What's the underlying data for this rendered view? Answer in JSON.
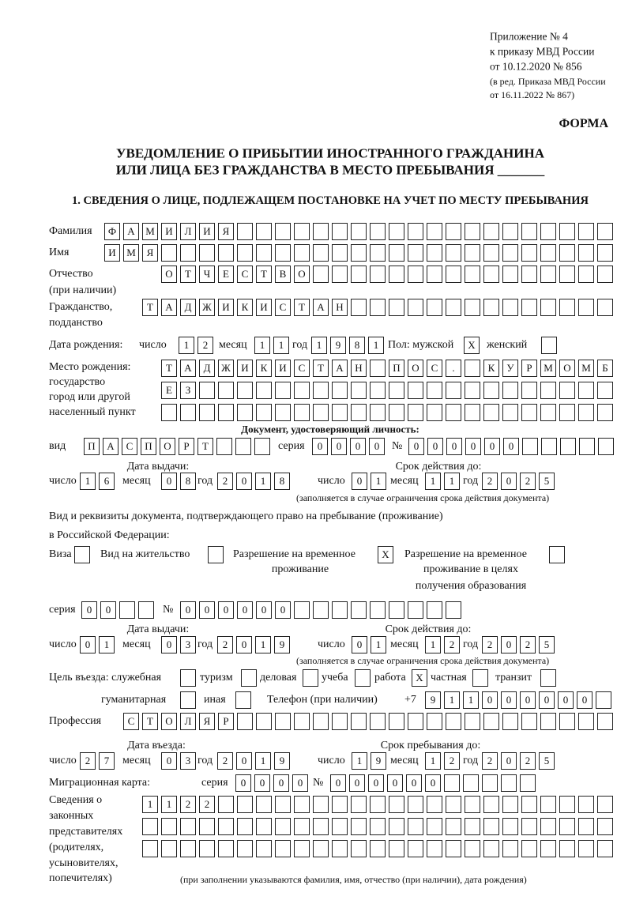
{
  "header": {
    "appendix": "Приложение № 4",
    "order": "к приказу МВД России",
    "order_date": "от 10.12.2020 № 856",
    "edition_1": "(в ред. Приказа МВД России",
    "edition_2": "от 16.11.2022 № 867)",
    "form_label": "ФОРМА"
  },
  "title": {
    "line1": "УВЕДОМЛЕНИЕ О ПРИБЫТИИ ИНОСТРАННОГО ГРАЖДАНИНА",
    "line2": "ИЛИ ЛИЦА БЕЗ ГРАЖДАНСТВА В МЕСТО ПРЕБЫВАНИЯ _______"
  },
  "section1": {
    "heading": "1. СВЕДЕНИЯ О ЛИЦЕ, ПОДЛЕЖАЩЕМ ПОСТАНОВКЕ НА УЧЕТ ПО МЕСТУ ПРЕБЫВАНИЯ",
    "labels": {
      "surname": "Фамилия",
      "name": "Имя",
      "patronymic_1": "Отчество",
      "patronymic_2": "(при наличии)",
      "citizenship_1": "Гражданство,",
      "citizenship_2": "подданство",
      "birth_date": "Дата рождения:",
      "day": "число",
      "month": "месяц",
      "year": "год",
      "sex_male": "Пол: мужской",
      "sex_female": "женский",
      "birthplace_1": "Место рождения:",
      "birthplace_2": "государство",
      "birthplace_3": "город или другой",
      "birthplace_4": "населенный пункт",
      "id_doc": "Документ, удостоверяющий личность:",
      "kind": "вид",
      "series": "серия",
      "number": "№",
      "issue_date": "Дата выдачи:",
      "valid_until": "Срок действия до:",
      "validity_note": "(заполняется в случае ограничения срока действия документа)",
      "stay_doc_1": "Вид и реквизиты документа, подтверждающего право на пребывание (проживание)",
      "stay_doc_2": "в Российской Федерации:",
      "visa": "Виза",
      "residence_permit": "Вид на жительство",
      "temp_residence_1": "Разрешение на временное",
      "temp_residence_2": "проживание",
      "temp_edu_1": "Разрешение на временное",
      "temp_edu_2": "проживание в целях",
      "temp_edu_3": "получения образования",
      "purpose": "Цель въезда: служебная",
      "tourism": "туризм",
      "business": "деловая",
      "study": "учеба",
      "work": "работа",
      "private": "частная",
      "transit": "транзит",
      "humanitarian": "гуманитарная",
      "other": "иная",
      "phone": "Телефон (при наличии)",
      "phone_prefix": "+7",
      "profession": "Профессия",
      "entry_date": "Дата въезда:",
      "stay_until": "Срок пребывания до:",
      "migration_card": "Миграционная карта:",
      "reps_1": "Сведения о",
      "reps_2": "законных",
      "reps_3": "представителях",
      "reps_4": "(родителях,",
      "reps_5": "усыновителях,",
      "reps_6": "попечителях)",
      "reps_note": "(при заполнении указываются фамилия, имя, отчество (при наличии), дата рождения)"
    },
    "values": {
      "surname": "ФАМИЛИЯ",
      "name": "ИМЯ",
      "patronymic": "ОТЧЕСТВО",
      "citizenship": "ТАДЖИКИСТАН",
      "birth_day": "12",
      "birth_month": "11",
      "birth_year": "1981",
      "sex_male": "X",
      "sex_female": "",
      "birthplace_1": "ТАДЖИКИСТАН ПОС. КУРМОМБ",
      "birthplace_2": "ЕЗ",
      "birthplace_3": "",
      "id_kind": "ПАСПОРТ",
      "id_series": "0000",
      "id_number": "000000",
      "id_issue_day": "16",
      "id_issue_month": "08",
      "id_issue_year": "2018",
      "id_valid_day": "01",
      "id_valid_month": "11",
      "id_valid_year": "2025",
      "visa": "",
      "residence_permit": "",
      "temp_residence": "X",
      "temp_edu": "",
      "stay_series": "00",
      "stay_number": "000000",
      "stay_issue_day": "01",
      "stay_issue_month": "03",
      "stay_issue_year": "2019",
      "stay_valid_day": "01",
      "stay_valid_month": "12",
      "stay_valid_year": "2025",
      "purpose_official": "",
      "purpose_tourism": "",
      "purpose_business": "",
      "purpose_study": "",
      "purpose_work": "X",
      "purpose_private": "",
      "purpose_transit": "",
      "purpose_humanitarian": "",
      "purpose_other": "",
      "phone": "911000000",
      "profession": "СТОЛЯР",
      "entry_day": "27",
      "entry_month": "03",
      "entry_year": "2019",
      "stay_until_day": "19",
      "stay_until_month": "12",
      "stay_until_year": "2025",
      "mc_series": "0000",
      "mc_number": "000000",
      "reps_1": "1122",
      "reps_2": "",
      "reps_3": ""
    }
  }
}
